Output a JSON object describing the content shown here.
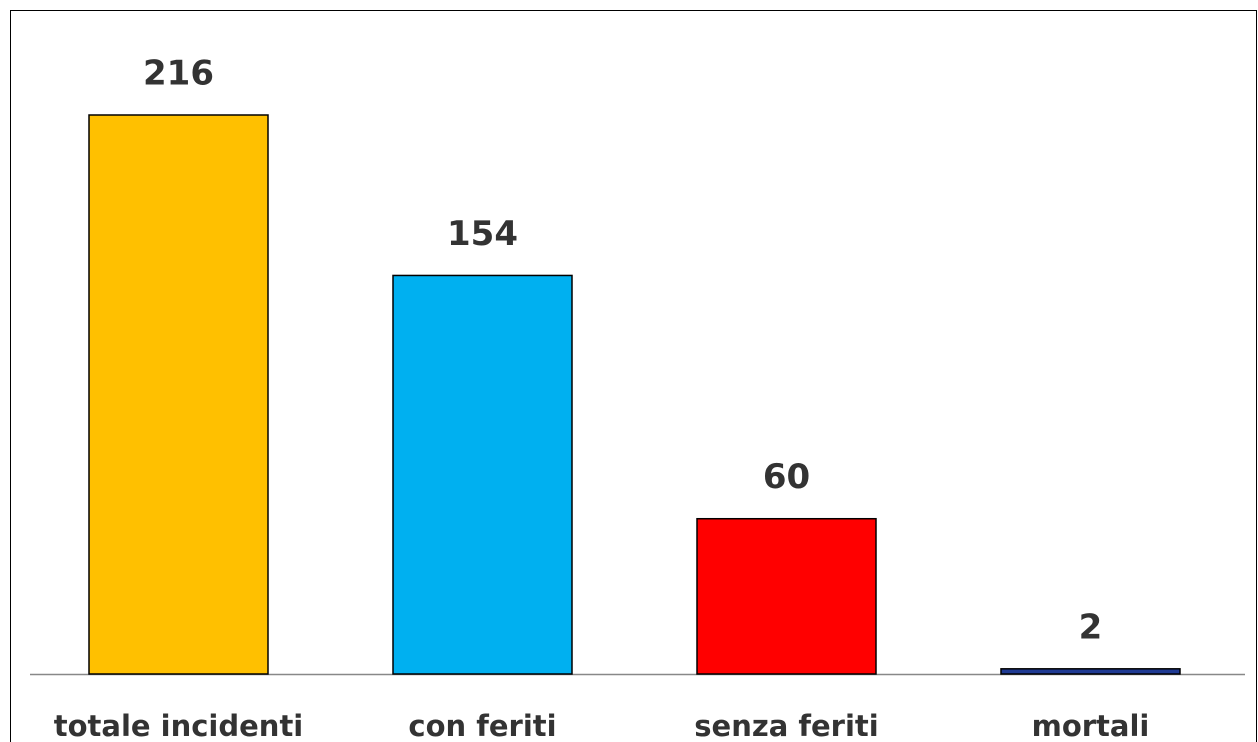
{
  "chart_data": {
    "type": "bar",
    "categories": [
      "totale incidenti",
      "con feriti",
      "senza feriti",
      "mortali"
    ],
    "values": [
      216,
      154,
      60,
      2
    ],
    "colors": [
      "#ffc000",
      "#00b0f0",
      "#ff0000",
      "#1f3a93"
    ]
  }
}
